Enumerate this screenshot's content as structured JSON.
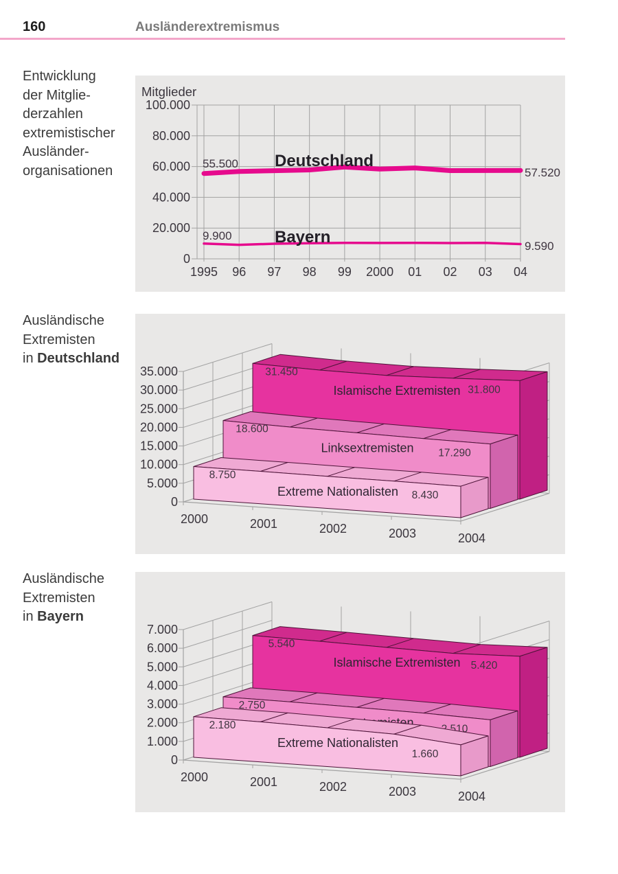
{
  "page": {
    "number": "160",
    "header_title": "Ausländerextremismus"
  },
  "colors": {
    "rule_pink": "#f3a6c9",
    "chart_bg": "#e9e8e7",
    "grid": "#a2a2a2",
    "tick_text": "#3a353d",
    "data_label_text": "#3f3540",
    "series_text": "#2d2531",
    "outline": "#4d1338",
    "magenta_line": "#e60a8d"
  },
  "sections": [
    {
      "caption": [
        [
          {
            "t": "Entwicklung"
          }
        ],
        [
          {
            "t": "der Mitglie-"
          }
        ],
        [
          {
            "t": "derzahlen"
          }
        ],
        [
          {
            "t": "extremistischer"
          }
        ],
        [
          {
            "t": "Ausländer-"
          }
        ],
        [
          {
            "t": "organisationen"
          }
        ]
      ]
    },
    {
      "caption": [
        [
          {
            "t": "Ausländische"
          }
        ],
        [
          {
            "t": "Extremisten"
          }
        ],
        [
          {
            "t": "in "
          },
          {
            "t": "Deutschland",
            "b": true
          }
        ]
      ]
    },
    {
      "caption": [
        [
          {
            "t": "Ausländische"
          }
        ],
        [
          {
            "t": "Extremisten"
          }
        ],
        [
          {
            "t": "in "
          },
          {
            "t": "Bayern",
            "b": true
          }
        ]
      ]
    }
  ],
  "chart_data": [
    {
      "type": "line",
      "ylabel": "Mitglieder",
      "x_ticklabels": [
        "1995",
        "96",
        "97",
        "98",
        "99",
        "2000",
        "01",
        "02",
        "03",
        "04"
      ],
      "y_ticklabels": [
        "100.000",
        "80.000",
        "60.000",
        "40.000",
        "20.000",
        "0"
      ],
      "ylim": [
        0,
        100000
      ],
      "grid": true,
      "line_color": "#e60a8d",
      "series": [
        {
          "name": "Deutschland",
          "stroke_width": 7,
          "first_label": "55.500",
          "last_label": "57.520",
          "values": [
            55500,
            56800,
            57300,
            57800,
            59700,
            58400,
            59100,
            57350,
            57400,
            57520
          ]
        },
        {
          "name": "Bayern",
          "stroke_width": 3.5,
          "first_label": "9.900",
          "last_label": "9.590",
          "values": [
            9900,
            9100,
            9800,
            10200,
            10400,
            10300,
            10400,
            10250,
            10350,
            9590
          ]
        }
      ]
    },
    {
      "type": "area3d",
      "region": "Deutschland",
      "x_ticklabels": [
        "2000",
        "2001",
        "2002",
        "2003",
        "2004"
      ],
      "y_ticklabels": [
        "35.000",
        "30.000",
        "25.000",
        "20.000",
        "15.000",
        "10.000",
        "5.000",
        "0"
      ],
      "ylim": [
        0,
        35000
      ],
      "series": [
        {
          "name": "Islamische Extremisten",
          "first_label": "31.450",
          "last_label": "31.800",
          "values": [
            31450,
            30900,
            30700,
            31200,
            31800
          ],
          "colors": {
            "front": "#e6339f",
            "top": "#d02b8d",
            "side": "#c02083"
          }
        },
        {
          "name": "Linksextremisten",
          "first_label": "18.600",
          "last_label": "17.290",
          "values": [
            18600,
            18100,
            17800,
            17500,
            17290
          ],
          "colors": {
            "front": "#f08cc9",
            "top": "#e078bb",
            "side": "#d164ad"
          }
        },
        {
          "name": "Extreme Nationalisten",
          "first_label": "8.750",
          "last_label": "8.430",
          "values": [
            8750,
            8700,
            8600,
            8550,
            8430
          ],
          "colors": {
            "front": "#f9bee1",
            "top": "#efa9d3",
            "side": "#e89aca"
          }
        }
      ]
    },
    {
      "type": "area3d",
      "region": "Bayern",
      "x_ticklabels": [
        "2000",
        "2001",
        "2002",
        "2003",
        "2004"
      ],
      "y_ticklabels": [
        "7.000",
        "6.000",
        "5.000",
        "4.000",
        "3.000",
        "2.000",
        "1.000",
        "0"
      ],
      "ylim": [
        0,
        7000
      ],
      "series": [
        {
          "name": "Islamische Extremisten",
          "first_label": "5.540",
          "last_label": "5.420",
          "values": [
            5540,
            5480,
            5400,
            5330,
            5420
          ],
          "colors": {
            "front": "#e6339f",
            "top": "#d02b8d",
            "side": "#c02083"
          }
        },
        {
          "name": "Linksextremisten",
          "first_label": "2.750",
          "last_label": "2.510",
          "values": [
            2750,
            2730,
            2680,
            2620,
            2510
          ],
          "colors": {
            "front": "#f08cc9",
            "top": "#e078bb",
            "side": "#d164ad"
          }
        },
        {
          "name": "Extreme Nationalisten",
          "first_label": "2.180",
          "last_label": "1.660",
          "values": [
            2180,
            2150,
            2080,
            1990,
            1660
          ],
          "colors": {
            "front": "#f9bee1",
            "top": "#efa9d3",
            "side": "#e89aca"
          }
        }
      ]
    }
  ]
}
